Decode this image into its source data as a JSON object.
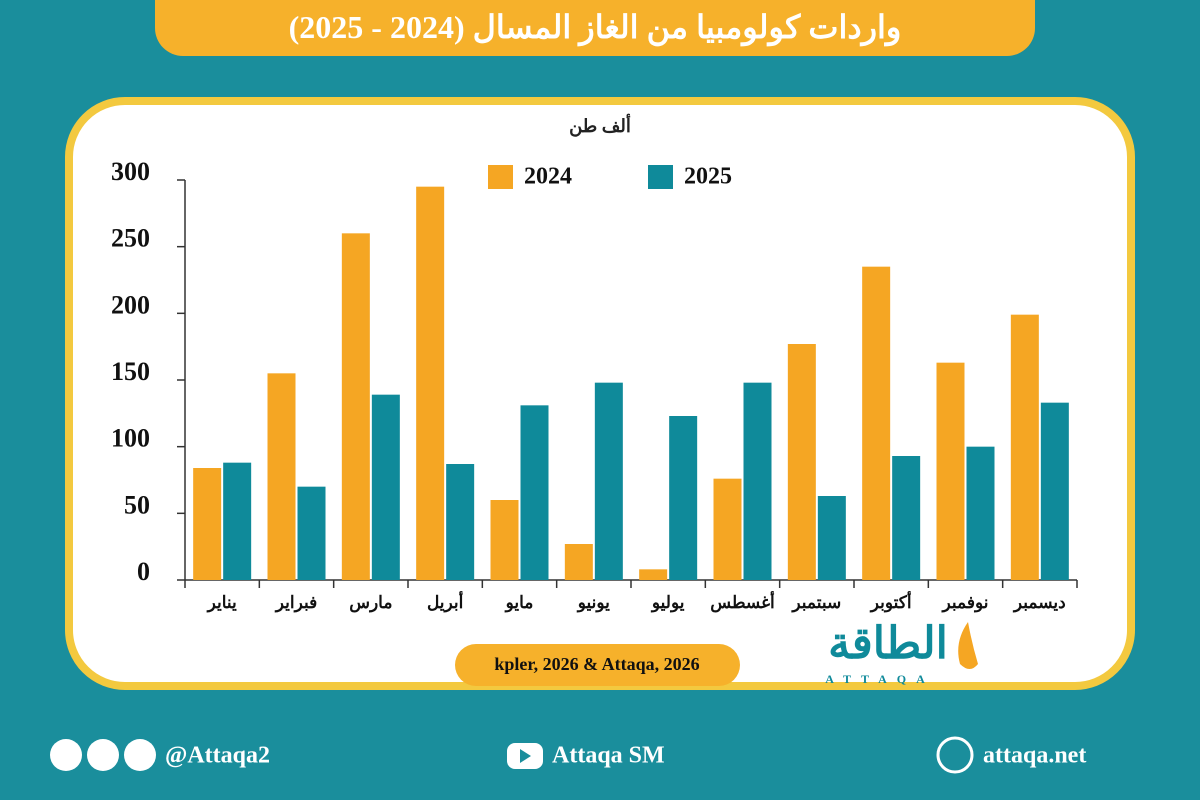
{
  "header": {
    "title": "واردات كولومبيا من الغاز المسال (2024 - 2025)"
  },
  "chart_data": {
    "type": "bar",
    "y_label": "ألف طن",
    "categories": [
      "يناير",
      "فبراير",
      "مارس",
      "أبريل",
      "مايو",
      "يونيو",
      "يوليو",
      "أغسطس",
      "سبتمبر",
      "أكتوبر",
      "نوفمبر",
      "ديسمبر"
    ],
    "series": [
      {
        "name": "2024",
        "color": "#f5a623",
        "values": [
          84,
          155,
          260,
          295,
          60,
          27,
          8,
          76,
          177,
          235,
          163,
          199
        ]
      },
      {
        "name": "2025",
        "color": "#0f8a9a",
        "values": [
          88,
          70,
          139,
          87,
          131,
          148,
          123,
          148,
          63,
          93,
          100,
          133
        ]
      }
    ],
    "ylim": [
      0,
      300
    ],
    "yticks": [
      0,
      50,
      100,
      150,
      200,
      250,
      300
    ]
  },
  "source": "kpler, 2026 & Attaqa, 2026",
  "logo": {
    "name": "الطاقة",
    "latin": "ATTAQA"
  },
  "footer": {
    "social": "@Attaqa2",
    "youtube": "Attaqa SM",
    "website": "attaqa.net"
  }
}
